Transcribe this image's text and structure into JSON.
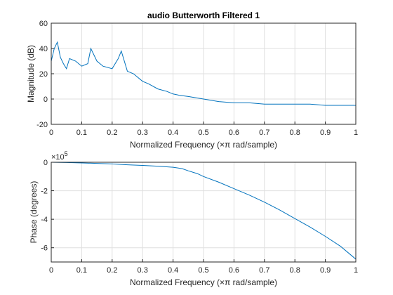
{
  "chart_data": [
    {
      "type": "line",
      "title": "audio Butterworth Filtered 1",
      "xlabel": "Normalized Frequency  (×π rad/sample)",
      "ylabel": "Magnitude (dB)",
      "xlim": [
        0,
        1
      ],
      "ylim": [
        -20,
        60
      ],
      "xticks": [
        "0",
        "0.1",
        "0.2",
        "0.3",
        "0.4",
        "0.5",
        "0.6",
        "0.7",
        "0.8",
        "0.9",
        "1"
      ],
      "yticks": [
        "-20",
        "0",
        "20",
        "40",
        "60"
      ],
      "grid": true,
      "line_color": "#0072bd",
      "series": [
        {
          "x": [
            0,
            0.01,
            0.02,
            0.03,
            0.04,
            0.05,
            0.06,
            0.08,
            0.1,
            0.12,
            0.13,
            0.15,
            0.17,
            0.2,
            0.22,
            0.23,
            0.25,
            0.27,
            0.3,
            0.32,
            0.35,
            0.38,
            0.4,
            0.42,
            0.45,
            0.5,
            0.55,
            0.6,
            0.65,
            0.7,
            0.75,
            0.8,
            0.85,
            0.9,
            0.95,
            1.0
          ],
          "values": [
            30,
            40,
            45,
            33,
            28,
            24,
            32,
            30,
            26,
            28,
            40,
            30,
            26,
            24,
            32,
            38,
            22,
            20,
            14,
            12,
            8,
            6,
            4,
            3,
            2,
            0,
            -2,
            -3,
            -3,
            -4,
            -4,
            -4,
            -4,
            -5,
            -5,
            -5
          ]
        }
      ]
    },
    {
      "type": "line",
      "title": "",
      "xlabel": "Normalized Frequency  (×π rad/sample)",
      "ylabel": "Phase (degrees)",
      "exponent_label": "×10",
      "exponent_power": "5",
      "xlim": [
        0,
        1
      ],
      "ylim": [
        -7,
        0
      ],
      "xticks": [
        "0",
        "0.1",
        "0.2",
        "0.3",
        "0.4",
        "0.5",
        "0.6",
        "0.7",
        "0.8",
        "0.9",
        "1"
      ],
      "yticks": [
        "0",
        "-2",
        "-4",
        "-6"
      ],
      "grid": true,
      "line_color": "#0072bd",
      "series": [
        {
          "x": [
            0,
            0.05,
            0.1,
            0.15,
            0.2,
            0.25,
            0.3,
            0.35,
            0.4,
            0.43,
            0.45,
            0.48,
            0.5,
            0.55,
            0.6,
            0.65,
            0.7,
            0.75,
            0.8,
            0.85,
            0.9,
            0.95,
            1.0
          ],
          "values": [
            0,
            -0.02,
            -0.05,
            -0.08,
            -0.12,
            -0.18,
            -0.22,
            -0.28,
            -0.35,
            -0.45,
            -0.6,
            -0.8,
            -1.0,
            -1.4,
            -1.85,
            -2.3,
            -2.8,
            -3.35,
            -3.95,
            -4.55,
            -5.2,
            -5.9,
            -6.8
          ]
        }
      ]
    }
  ]
}
